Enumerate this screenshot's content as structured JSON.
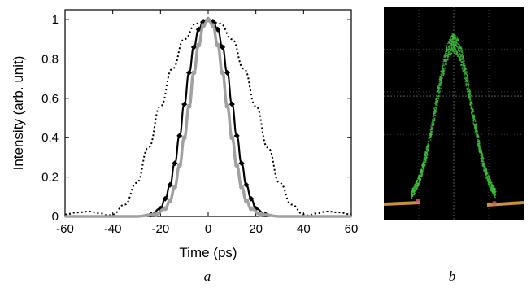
{
  "chart_data": [
    {
      "type": "line",
      "xlabel": "Time (ps)",
      "ylabel": "Intensity (arb. unit)",
      "xlim": [
        -60,
        60
      ],
      "ylim": [
        0,
        1.05
      ],
      "xticks": [
        -60,
        -40,
        -20,
        0,
        20,
        40,
        60
      ],
      "yticks": [
        0,
        0.2,
        0.4,
        0.6,
        0.8,
        1
      ],
      "ytick_labels": [
        "0",
        "0.2",
        "0.4",
        "0.6",
        "0.8",
        "1"
      ],
      "grid": false,
      "series": [
        {
          "style": "dotted",
          "color": "#000000",
          "x": [
            -60,
            -55,
            -50,
            -45,
            -42,
            -40,
            -35,
            -30,
            -25,
            -20,
            -15,
            -10,
            -5,
            0,
            5,
            10,
            15,
            20,
            25,
            30,
            35,
            40,
            42,
            45,
            50,
            55,
            60
          ],
          "values": [
            0.01,
            0.02,
            0.025,
            0.015,
            0.005,
            0.01,
            0.06,
            0.17,
            0.35,
            0.56,
            0.75,
            0.9,
            0.98,
            1.0,
            0.98,
            0.9,
            0.75,
            0.56,
            0.35,
            0.17,
            0.06,
            0.01,
            0.005,
            0.015,
            0.025,
            0.02,
            0.01
          ]
        },
        {
          "style": "solid-diamond",
          "color": "#000000",
          "x": [
            -60,
            -30,
            -24,
            -20,
            -18,
            -16,
            -14,
            -12,
            -10,
            -8,
            -6,
            -4,
            -2,
            0,
            2,
            4,
            6,
            8,
            10,
            12,
            14,
            16,
            18,
            20,
            24,
            30,
            60
          ],
          "values": [
            0,
            0,
            0.01,
            0.04,
            0.09,
            0.16,
            0.27,
            0.41,
            0.57,
            0.73,
            0.86,
            0.95,
            0.99,
            1.0,
            0.99,
            0.95,
            0.86,
            0.73,
            0.57,
            0.41,
            0.27,
            0.16,
            0.09,
            0.04,
            0.01,
            0,
            0
          ]
        },
        {
          "style": "solid-circle",
          "color": "#a0a0a0",
          "x": [
            -60,
            -30,
            -22,
            -18,
            -16,
            -14,
            -12,
            -10,
            -8,
            -6,
            -4,
            -2,
            0,
            2,
            4,
            6,
            8,
            10,
            12,
            14,
            16,
            18,
            22,
            30,
            60
          ],
          "values": [
            0,
            0,
            0.01,
            0.04,
            0.08,
            0.15,
            0.26,
            0.4,
            0.56,
            0.73,
            0.87,
            0.97,
            1.0,
            0.97,
            0.87,
            0.73,
            0.56,
            0.4,
            0.26,
            0.15,
            0.08,
            0.04,
            0.01,
            0,
            0
          ]
        }
      ],
      "panel_label": "a"
    },
    {
      "type": "scatter",
      "description_visible": "oscilloscope trace",
      "background": "#000000",
      "trace_color": "#3fbf3f",
      "baseline_color": "#e0a040",
      "panel_label": "b"
    }
  ]
}
